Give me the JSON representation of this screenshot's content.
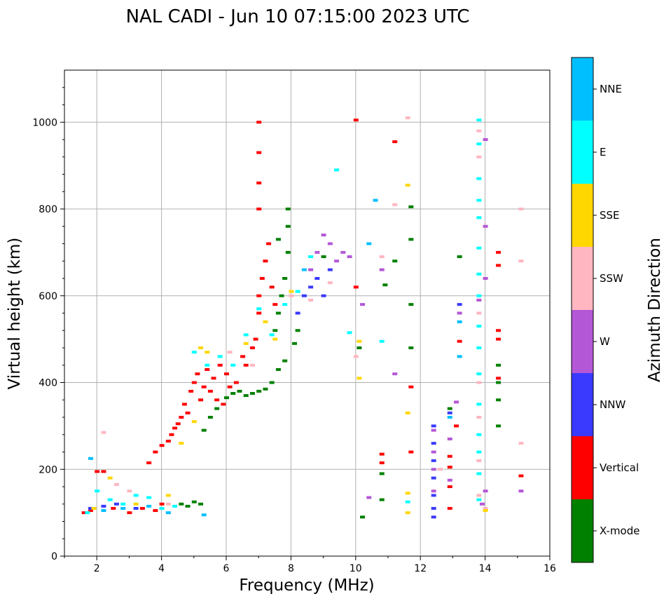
{
  "chart_data": {
    "type": "scatter",
    "title": "NAL CADI - Jun 10 07:15:00 2023 UTC",
    "xlabel": "Frequency (MHz)",
    "ylabel": "Virtual height (km)",
    "xlim": [
      1,
      16
    ],
    "ylim": [
      0,
      1120
    ],
    "x_ticks": [
      2,
      4,
      6,
      8,
      10,
      12,
      14,
      16
    ],
    "y_ticks": [
      0,
      200,
      400,
      600,
      800,
      1000
    ],
    "grid": true,
    "colorbar": {
      "label": "Azimuth Direction",
      "categories": [
        {
          "name": "X-mode",
          "color": "#008000"
        },
        {
          "name": "Vertical",
          "color": "#ff0000"
        },
        {
          "name": "NNW",
          "color": "#3a3aff"
        },
        {
          "name": "W",
          "color": "#b457d6"
        },
        {
          "name": "SSW",
          "color": "#ffb6c1"
        },
        {
          "name": "SSE",
          "color": "#ffd700"
        },
        {
          "name": "E",
          "color": "#00ffff"
        },
        {
          "name": "NNE",
          "color": "#00bfff"
        }
      ]
    },
    "clusters": [
      {
        "name": "Vertical",
        "points": [
          [
            1.6,
            100
          ],
          [
            1.8,
            105
          ],
          [
            2.0,
            195
          ],
          [
            2.2,
            195
          ],
          [
            2.5,
            110
          ],
          [
            3.0,
            100
          ],
          [
            3.4,
            110
          ],
          [
            3.8,
            105
          ],
          [
            4.0,
            120
          ],
          [
            3.6,
            215
          ],
          [
            3.8,
            240
          ],
          [
            4.0,
            255
          ],
          [
            4.2,
            265
          ],
          [
            4.3,
            280
          ],
          [
            4.4,
            295
          ],
          [
            4.5,
            305
          ],
          [
            4.6,
            320
          ],
          [
            4.7,
            350
          ],
          [
            4.8,
            330
          ],
          [
            4.9,
            380
          ],
          [
            5.0,
            400
          ],
          [
            5.1,
            420
          ],
          [
            5.2,
            360
          ],
          [
            5.3,
            390
          ],
          [
            5.4,
            430
          ],
          [
            5.5,
            380
          ],
          [
            5.6,
            410
          ],
          [
            5.7,
            360
          ],
          [
            5.8,
            440
          ],
          [
            5.9,
            350
          ],
          [
            6.0,
            420
          ],
          [
            6.1,
            390
          ],
          [
            6.3,
            400
          ],
          [
            6.5,
            460
          ],
          [
            6.6,
            440
          ],
          [
            6.8,
            480
          ],
          [
            6.9,
            500
          ],
          [
            7.0,
            560
          ],
          [
            7.0,
            600
          ],
          [
            7.1,
            640
          ],
          [
            7.2,
            680
          ],
          [
            7.3,
            720
          ],
          [
            7.4,
            620
          ],
          [
            7.0,
            800
          ],
          [
            7.0,
            860
          ],
          [
            7.0,
            930
          ],
          [
            7.0,
            1000
          ],
          [
            7.5,
            580
          ],
          [
            10.0,
            1005
          ],
          [
            10.0,
            620
          ],
          [
            10.8,
            235
          ],
          [
            10.8,
            215
          ],
          [
            11.2,
            955
          ],
          [
            11.7,
            240
          ],
          [
            11.7,
            390
          ],
          [
            12.9,
            230
          ],
          [
            12.9,
            160
          ],
          [
            12.9,
            110
          ],
          [
            12.9,
            205
          ],
          [
            13.1,
            300
          ],
          [
            13.2,
            495
          ],
          [
            14.4,
            520
          ],
          [
            14.4,
            500
          ],
          [
            14.4,
            410
          ],
          [
            14.4,
            700
          ],
          [
            14.4,
            670
          ],
          [
            15.1,
            185
          ]
        ]
      },
      {
        "name": "X-mode",
        "points": [
          [
            4.6,
            120
          ],
          [
            4.8,
            115
          ],
          [
            5.0,
            125
          ],
          [
            5.2,
            120
          ],
          [
            5.3,
            290
          ],
          [
            5.5,
            320
          ],
          [
            5.7,
            340
          ],
          [
            6.0,
            365
          ],
          [
            6.2,
            375
          ],
          [
            6.4,
            380
          ],
          [
            6.6,
            370
          ],
          [
            6.8,
            375
          ],
          [
            7.0,
            380
          ],
          [
            7.2,
            385
          ],
          [
            7.4,
            400
          ],
          [
            7.6,
            430
          ],
          [
            7.8,
            450
          ],
          [
            7.5,
            520
          ],
          [
            7.6,
            560
          ],
          [
            7.7,
            600
          ],
          [
            7.8,
            640
          ],
          [
            7.9,
            700
          ],
          [
            7.9,
            760
          ],
          [
            7.9,
            800
          ],
          [
            7.6,
            730
          ],
          [
            8.1,
            490
          ],
          [
            8.2,
            520
          ],
          [
            9.0,
            690
          ],
          [
            10.1,
            480
          ],
          [
            10.9,
            625
          ],
          [
            10.8,
            190
          ],
          [
            10.8,
            130
          ],
          [
            11.2,
            680
          ],
          [
            11.7,
            805
          ],
          [
            11.7,
            730
          ],
          [
            11.7,
            580
          ],
          [
            11.7,
            480
          ],
          [
            12.9,
            340
          ],
          [
            13.2,
            690
          ],
          [
            14.4,
            360
          ],
          [
            14.4,
            400
          ],
          [
            14.4,
            440
          ],
          [
            14.4,
            300
          ],
          [
            10.2,
            90
          ]
        ]
      },
      {
        "name": "NNW",
        "points": [
          [
            1.8,
            110
          ],
          [
            2.2,
            115
          ],
          [
            2.6,
            120
          ],
          [
            3.2,
            110
          ],
          [
            8.2,
            560
          ],
          [
            8.4,
            600
          ],
          [
            8.6,
            620
          ],
          [
            8.8,
            640
          ],
          [
            9.0,
            600
          ],
          [
            9.2,
            660
          ],
          [
            12.4,
            300
          ],
          [
            12.4,
            260
          ],
          [
            12.4,
            220
          ],
          [
            12.4,
            180
          ],
          [
            12.4,
            140
          ],
          [
            12.4,
            110
          ],
          [
            12.4,
            90
          ],
          [
            12.9,
            330
          ],
          [
            13.2,
            580
          ]
        ]
      },
      {
        "name": "W",
        "points": [
          [
            8.6,
            660
          ],
          [
            8.8,
            700
          ],
          [
            9.0,
            740
          ],
          [
            9.2,
            720
          ],
          [
            9.4,
            680
          ],
          [
            9.6,
            700
          ],
          [
            9.8,
            690
          ],
          [
            10.2,
            580
          ],
          [
            10.8,
            660
          ],
          [
            11.2,
            420
          ],
          [
            12.4,
            290
          ],
          [
            12.4,
            240
          ],
          [
            12.4,
            200
          ],
          [
            12.4,
            150
          ],
          [
            12.9,
            270
          ],
          [
            12.9,
            175
          ],
          [
            13.1,
            355
          ],
          [
            13.2,
            560
          ],
          [
            13.8,
            590
          ],
          [
            13.9,
            120
          ],
          [
            14.0,
            150
          ],
          [
            14.0,
            640
          ],
          [
            14.0,
            760
          ],
          [
            14.0,
            960
          ],
          [
            15.1,
            150
          ],
          [
            10.4,
            135
          ]
        ]
      },
      {
        "name": "SSW",
        "points": [
          [
            2.2,
            285
          ],
          [
            2.6,
            165
          ],
          [
            3.0,
            150
          ],
          [
            4.2,
            120
          ],
          [
            6.1,
            470
          ],
          [
            6.8,
            440
          ],
          [
            8.0,
            600
          ],
          [
            8.6,
            590
          ],
          [
            9.2,
            630
          ],
          [
            10.0,
            460
          ],
          [
            10.8,
            690
          ],
          [
            11.2,
            810
          ],
          [
            11.6,
            1010
          ],
          [
            12.6,
            200
          ],
          [
            13.8,
            980
          ],
          [
            13.8,
            920
          ],
          [
            13.8,
            560
          ],
          [
            13.8,
            400
          ],
          [
            13.8,
            320
          ],
          [
            13.8,
            220
          ],
          [
            13.8,
            140
          ],
          [
            14.0,
            110
          ],
          [
            15.1,
            260
          ],
          [
            15.1,
            680
          ],
          [
            15.1,
            800
          ]
        ]
      },
      {
        "name": "SSE",
        "points": [
          [
            1.9,
            110
          ],
          [
            2.4,
            180
          ],
          [
            3.2,
            120
          ],
          [
            4.2,
            140
          ],
          [
            4.6,
            260
          ],
          [
            5.0,
            310
          ],
          [
            5.2,
            480
          ],
          [
            5.4,
            470
          ],
          [
            6.6,
            490
          ],
          [
            7.2,
            540
          ],
          [
            7.5,
            500
          ],
          [
            8.0,
            610
          ],
          [
            10.1,
            495
          ],
          [
            10.1,
            410
          ],
          [
            11.6,
            855
          ],
          [
            11.6,
            330
          ],
          [
            11.6,
            145
          ],
          [
            11.6,
            100
          ],
          [
            14.0,
            105
          ]
        ]
      },
      {
        "name": "E",
        "points": [
          [
            1.7,
            100
          ],
          [
            2.0,
            150
          ],
          [
            2.4,
            130
          ],
          [
            2.8,
            120
          ],
          [
            3.2,
            140
          ],
          [
            3.6,
            135
          ],
          [
            4.0,
            110
          ],
          [
            4.4,
            115
          ],
          [
            5.0,
            470
          ],
          [
            5.4,
            440
          ],
          [
            5.8,
            460
          ],
          [
            6.2,
            440
          ],
          [
            6.6,
            510
          ],
          [
            7.0,
            570
          ],
          [
            7.4,
            510
          ],
          [
            7.8,
            580
          ],
          [
            8.2,
            610
          ],
          [
            8.6,
            690
          ],
          [
            9.4,
            890
          ],
          [
            9.8,
            515
          ],
          [
            10.8,
            495
          ],
          [
            11.6,
            125
          ],
          [
            13.8,
            1005
          ],
          [
            13.8,
            950
          ],
          [
            13.8,
            870
          ],
          [
            13.8,
            820
          ],
          [
            13.8,
            780
          ],
          [
            13.8,
            710
          ],
          [
            13.8,
            650
          ],
          [
            13.8,
            600
          ],
          [
            13.8,
            530
          ],
          [
            13.8,
            480
          ],
          [
            13.8,
            420
          ],
          [
            13.8,
            350
          ],
          [
            13.8,
            280
          ],
          [
            13.8,
            240
          ],
          [
            13.8,
            190
          ],
          [
            13.8,
            130
          ]
        ]
      },
      {
        "name": "NNE",
        "points": [
          [
            1.8,
            225
          ],
          [
            2.2,
            105
          ],
          [
            2.8,
            110
          ],
          [
            3.6,
            115
          ],
          [
            4.2,
            100
          ],
          [
            5.3,
            95
          ],
          [
            8.4,
            660
          ],
          [
            12.9,
            320
          ],
          [
            13.2,
            540
          ],
          [
            13.2,
            460
          ],
          [
            10.6,
            820
          ],
          [
            10.4,
            720
          ]
        ]
      }
    ]
  }
}
